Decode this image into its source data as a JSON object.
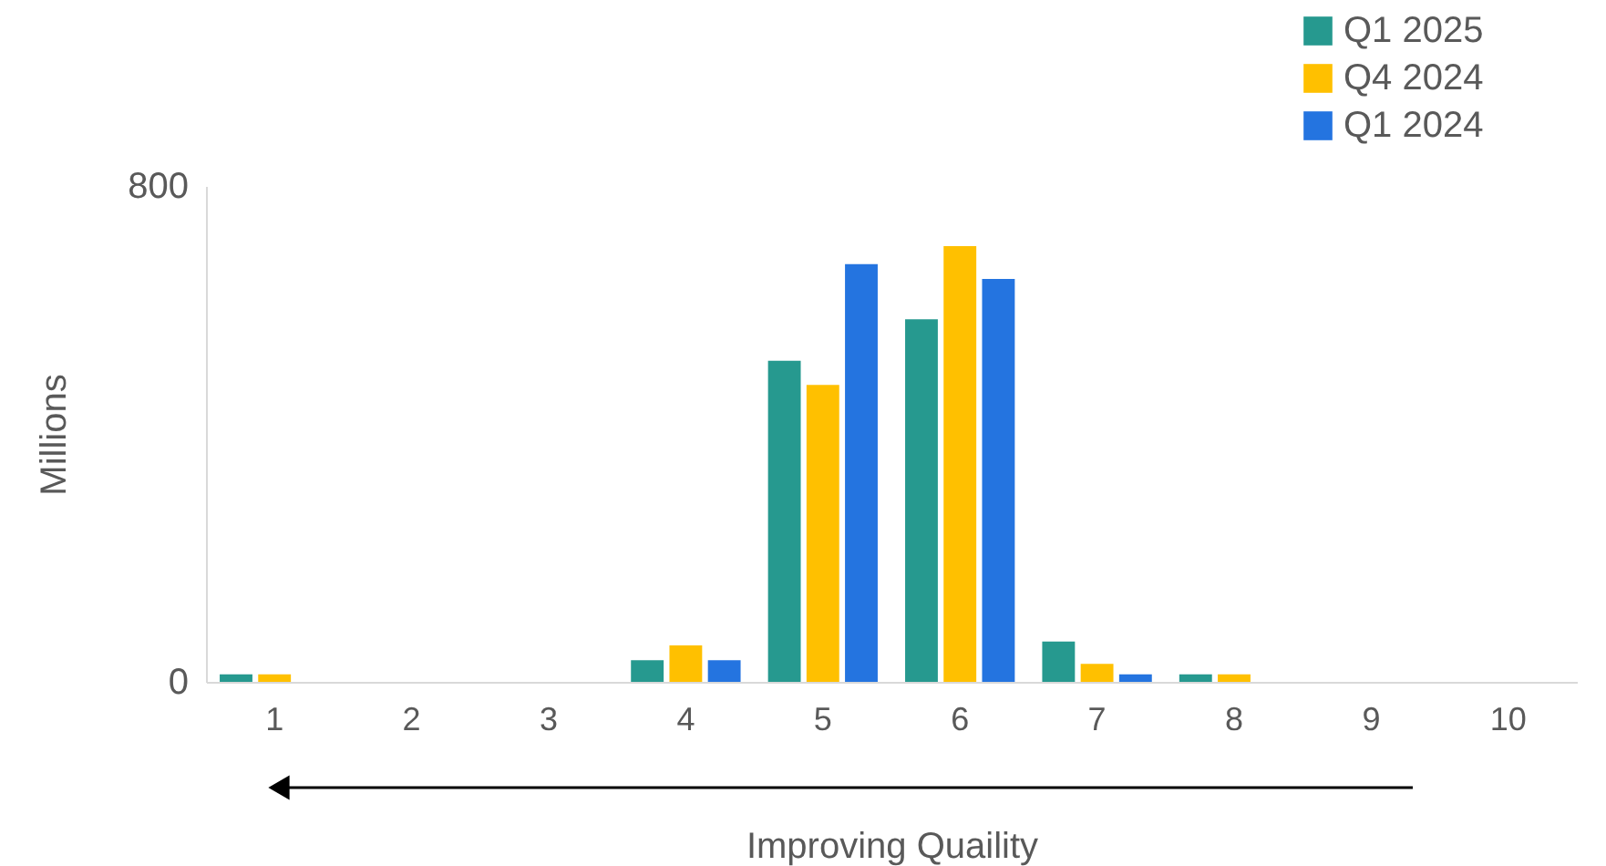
{
  "chart_data": {
    "type": "bar",
    "ylabel": "Millions",
    "xlabel": "Improving Quaility",
    "categories": [
      "1",
      "2",
      "3",
      "4",
      "5",
      "6",
      "7",
      "8",
      "9",
      "10"
    ],
    "series": [
      {
        "name": "Q1 2025",
        "color": "#26998f",
        "values": [
          12,
          0,
          0,
          35,
          518,
          585,
          65,
          12,
          0,
          0
        ]
      },
      {
        "name": "Q4 2024",
        "color": "#ffc000",
        "values": [
          12,
          0,
          0,
          59,
          479,
          703,
          29,
          12,
          0,
          0
        ]
      },
      {
        "name": "Q1 2024",
        "color": "#2474e0",
        "values": [
          0,
          0,
          0,
          35,
          674,
          650,
          12,
          0,
          0,
          0
        ]
      }
    ],
    "ylim": [
      0,
      800
    ],
    "yticks": [
      0,
      800
    ],
    "grid": false,
    "legend": "top right"
  }
}
